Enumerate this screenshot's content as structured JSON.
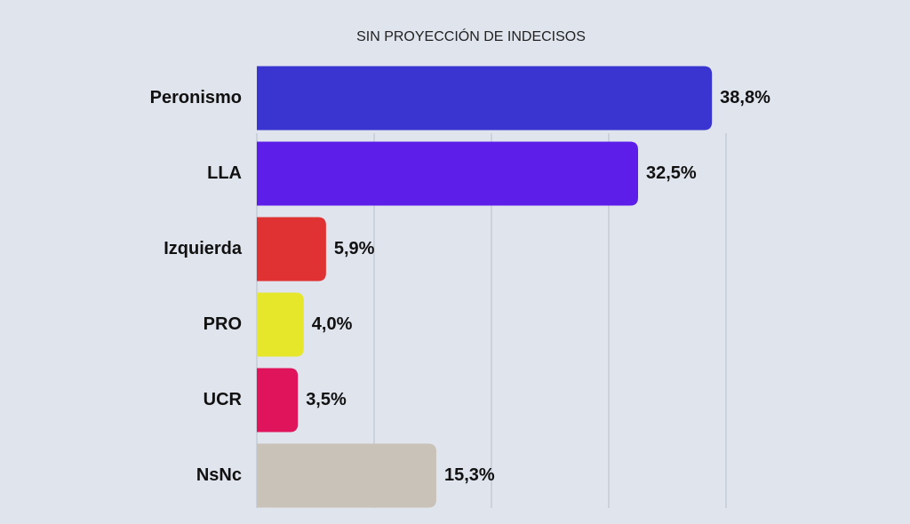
{
  "chart_data": {
    "type": "bar",
    "orientation": "horizontal",
    "title": "SIN PROYECCIÓN DE INDECISOS",
    "categories": [
      "Peronismo",
      "LLA",
      "Izquierda",
      "PRO",
      "UCR",
      "NsNc"
    ],
    "values": [
      38.8,
      32.5,
      5.9,
      4.0,
      3.5,
      15.3
    ],
    "value_labels": [
      "38,8%",
      "32,5%",
      "5,9%",
      "4,0%",
      "3,5%",
      "15,3%"
    ],
    "colors": [
      "#3a35d0",
      "#5e1eea",
      "#e03232",
      "#e6e62a",
      "#e0145a",
      "#c9c2b8"
    ],
    "xlim": [
      0,
      40
    ],
    "xticks": [
      0,
      10,
      20,
      30,
      40
    ],
    "grid": true
  }
}
